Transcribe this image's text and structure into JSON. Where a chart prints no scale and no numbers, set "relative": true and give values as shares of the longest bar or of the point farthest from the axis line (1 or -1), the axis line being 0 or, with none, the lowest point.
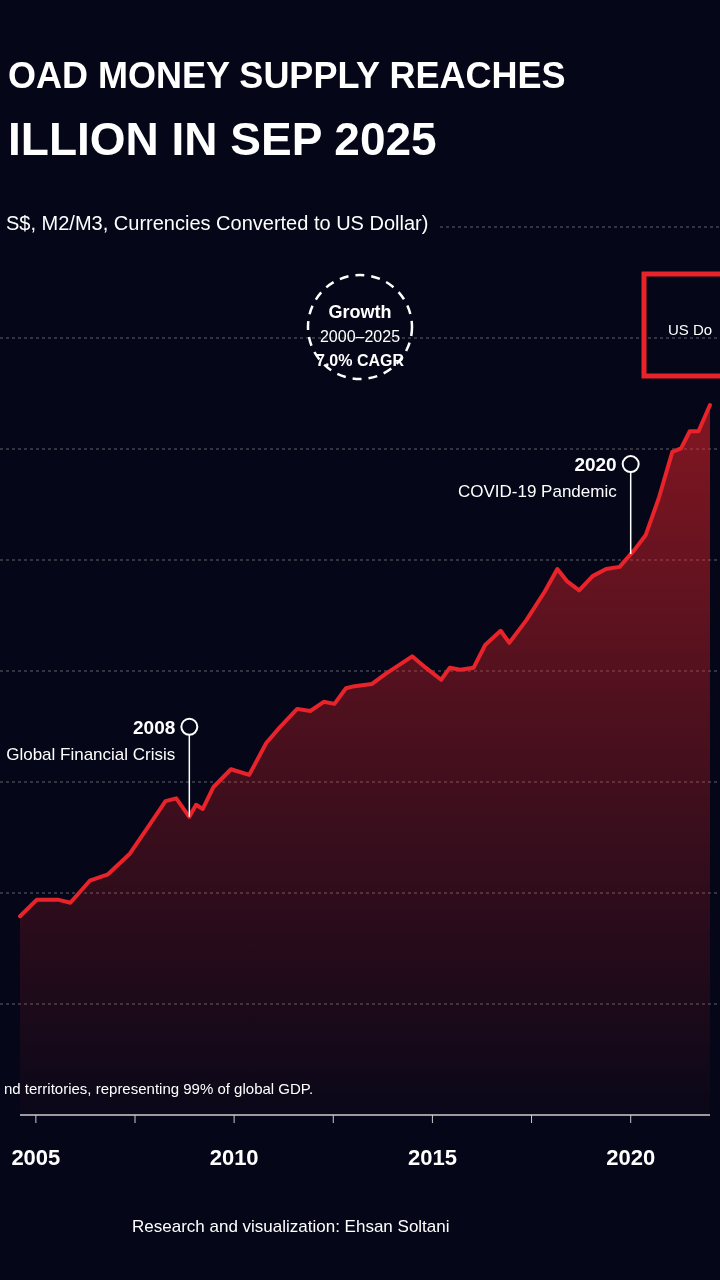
{
  "chart_data": {
    "type": "area",
    "title": "OAD MONEY SUPPLY REACHES\nILLION IN SEP 2025",
    "subtitle": "S$, M2/M3, Currencies Converted to US Dollar)",
    "relative": true,
    "grid": "y",
    "xlim": [
      2004.6,
      2022.0
    ],
    "xticks": [
      2005,
      {
        "value": 2007.5,
        "label": null
      },
      2010,
      {
        "value": 2012.5,
        "label": null
      },
      2015,
      {
        "value": 2017.5,
        "label": null
      },
      2020
    ],
    "x": [
      2004.6,
      2005.02,
      2005.58,
      2005.87,
      2006.36,
      2006.82,
      2007.37,
      2007.81,
      2008.27,
      2008.54,
      2008.87,
      2009.04,
      2009.21,
      2009.48,
      2009.92,
      2010.38,
      2010.81,
      2011.15,
      2011.59,
      2011.92,
      2012.26,
      2012.53,
      2012.82,
      2013.04,
      2013.47,
      2013.81,
      2014.49,
      2014.83,
      2015.22,
      2015.44,
      2015.7,
      2016.04,
      2016.33,
      2016.72,
      2016.94,
      2017.37,
      2017.83,
      2018.15,
      2018.39,
      2018.7,
      2019.04,
      2019.38,
      2019.72,
      2020.11,
      2020.38,
      2020.71,
      2021.05,
      2021.27,
      2021.49,
      2021.71,
      2022.0
    ],
    "series": [
      {
        "color": "#e8232a",
        "values": [
          0.28,
          0.303,
          0.303,
          0.299,
          0.33,
          0.339,
          0.368,
          0.404,
          0.442,
          0.446,
          0.42,
          0.437,
          0.431,
          0.462,
          0.487,
          0.479,
          0.524,
          0.546,
          0.572,
          0.569,
          0.582,
          0.579,
          0.601,
          0.604,
          0.607,
          0.621,
          0.646,
          0.63,
          0.613,
          0.63,
          0.627,
          0.63,
          0.662,
          0.682,
          0.665,
          0.697,
          0.737,
          0.769,
          0.752,
          0.739,
          0.759,
          0.769,
          0.772,
          0.797,
          0.817,
          0.869,
          0.934,
          0.939,
          0.963,
          0.963,
          1.0
        ]
      }
    ],
    "annotations": [
      {
        "text": "2008\nGlobal Financial Crisis",
        "x": 2008.87,
        "y": 0.42
      },
      {
        "text": "2020\nCOVID-19 Pandemic",
        "x": 2020.0,
        "y": 0.79
      },
      "Growth\n2000–2025\n7.0% CAGR",
      "US Do",
      "nd territories, representing 99% of global GDP.",
      "Research and visualization: Ehsan Soltani"
    ]
  }
}
